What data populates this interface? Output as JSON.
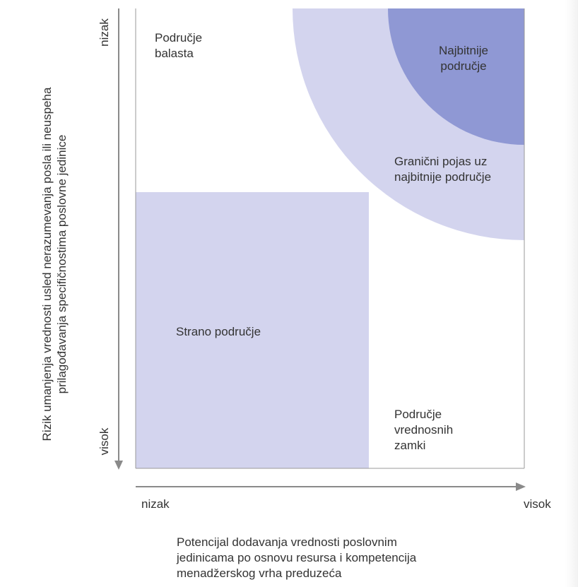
{
  "regions": {
    "ballast": "Područje\nbalasta",
    "heartland": "Najbitnije\npodručje",
    "edge_of_heartland": "Granični pojas uz\nnajbitnije područje",
    "alien_territory": "Strano područje",
    "value_trap": "Područje\nvrednosnih\nzamki"
  },
  "y_axis": {
    "top_label": "nizak",
    "bottom_label": "visok",
    "title": "Rizik umanjenja vrednosti usled nerazumevanja posla ili neuspeha prilagođavanja specifičnostima poslovne jedinice"
  },
  "x_axis": {
    "left_label": "nizak",
    "right_label": "visok",
    "title": "Potencijal dodavanja vrednosti poslovnim\njedinicama po osnovu resursa i kompetencija\nmenadžerskog vrha preduzeća"
  },
  "colors": {
    "light_region": "#d3d4ee",
    "dark_region": "#8f98d4",
    "axis": "#8a8a8a",
    "border": "#999999"
  }
}
